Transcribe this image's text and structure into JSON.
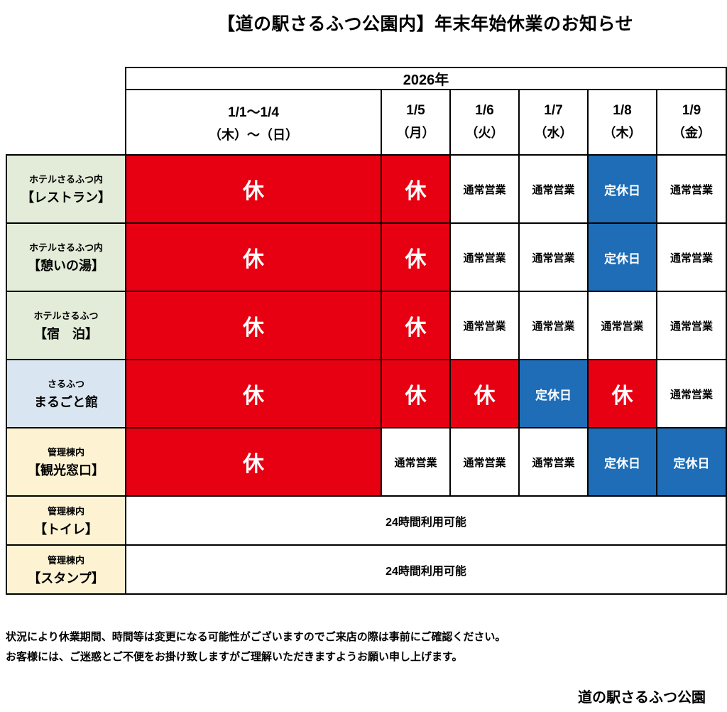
{
  "page": {
    "title": "【道の駅さるふつ公園内】年末年始休業のお知らせ",
    "notes": [
      "状況により休業期間、時間等は変更になる可能性がございますのでご来店の際は事前にご確認ください。",
      "お客様には、ご迷惑とご不便をお掛け致しますがご理解いただきますようお願い申し上げます。"
    ],
    "signature": "道の駅さるふつ公園"
  },
  "colors": {
    "closed_bg": "#e60012",
    "closed_text": "#ffffff",
    "holiday_bg": "#1e6db6",
    "holiday_text": "#ffffff",
    "facility_green": "#e2ecd8",
    "facility_blue": "#d9e5f1",
    "facility_cream": "#fdf3d3",
    "border": "#000000"
  },
  "table": {
    "year_header": "2026年",
    "date_columns": [
      {
        "date": "1/1～1/4",
        "weekday": "（木）～（日）"
      },
      {
        "date": "1/5",
        "weekday": "（月）"
      },
      {
        "date": "1/6",
        "weekday": "（火）"
      },
      {
        "date": "1/7",
        "weekday": "（水）"
      },
      {
        "date": "1/8",
        "weekday": "（木）"
      },
      {
        "date": "1/9",
        "weekday": "（金）"
      }
    ],
    "rows": [
      {
        "facility_line1": "ホテルさるふつ内",
        "facility_line2": "【レストラン】",
        "header_color_key": "facility_green",
        "cells": [
          {
            "text": "休",
            "type": "closed"
          },
          {
            "text": "休",
            "type": "closed"
          },
          {
            "text": "通常営業",
            "type": "open"
          },
          {
            "text": "通常営業",
            "type": "open"
          },
          {
            "text": "定休日",
            "type": "holiday"
          },
          {
            "text": "通常営業",
            "type": "open"
          }
        ]
      },
      {
        "facility_line1": "ホテルさるふつ内",
        "facility_line2": "【憩いの湯】",
        "header_color_key": "facility_green",
        "cells": [
          {
            "text": "休",
            "type": "closed"
          },
          {
            "text": "休",
            "type": "closed"
          },
          {
            "text": "通常営業",
            "type": "open"
          },
          {
            "text": "通常営業",
            "type": "open"
          },
          {
            "text": "定休日",
            "type": "holiday"
          },
          {
            "text": "通常営業",
            "type": "open"
          }
        ]
      },
      {
        "facility_line1": "ホテルさるふつ",
        "facility_line2": "【宿　泊】",
        "header_color_key": "facility_green",
        "cells": [
          {
            "text": "休",
            "type": "closed"
          },
          {
            "text": "休",
            "type": "closed"
          },
          {
            "text": "通常営業",
            "type": "open"
          },
          {
            "text": "通常営業",
            "type": "open"
          },
          {
            "text": "通常営業",
            "type": "open"
          },
          {
            "text": "通常営業",
            "type": "open"
          }
        ]
      },
      {
        "facility_line1": "さるふつ",
        "facility_line2": "まるごと館",
        "header_color_key": "facility_blue",
        "cells": [
          {
            "text": "休",
            "type": "closed"
          },
          {
            "text": "休",
            "type": "closed"
          },
          {
            "text": "休",
            "type": "closed"
          },
          {
            "text": "定休日",
            "type": "holiday"
          },
          {
            "text": "休",
            "type": "closed"
          },
          {
            "text": "通常営業",
            "type": "open"
          }
        ]
      },
      {
        "facility_line1": "管理棟内",
        "facility_line2": "【観光窓口】",
        "header_color_key": "facility_cream",
        "cells": [
          {
            "text": "休",
            "type": "closed"
          },
          {
            "text": "通常営業",
            "type": "open"
          },
          {
            "text": "通常営業",
            "type": "open"
          },
          {
            "text": "通常営業",
            "type": "open"
          },
          {
            "text": "定休日",
            "type": "holiday"
          },
          {
            "text": "定休日",
            "type": "holiday"
          }
        ]
      },
      {
        "facility_line1": "管理棟内",
        "facility_line2": "【トイレ】",
        "header_color_key": "facility_cream",
        "cells": [
          {
            "text": "24時間利用可能",
            "type": "allday",
            "colspan": 6
          }
        ]
      },
      {
        "facility_line1": "管理棟内",
        "facility_line2": "【スタンプ】",
        "header_color_key": "facility_cream",
        "cells": [
          {
            "text": "24時間利用可能",
            "type": "allday",
            "colspan": 6
          }
        ]
      }
    ]
  }
}
